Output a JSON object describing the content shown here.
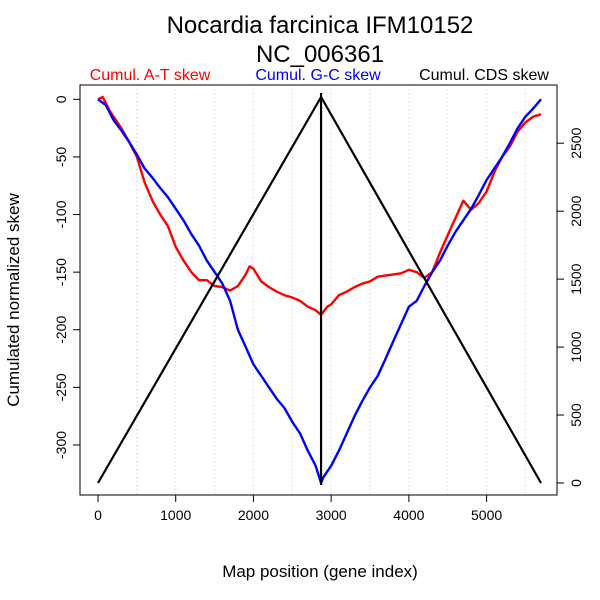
{
  "chart_data": {
    "type": "line",
    "title": "Nocardia farcinica IFM10152",
    "subtitle": "NC_006361",
    "xlabel": "Map position (gene index)",
    "ylabel": "Cumulated normalized skew",
    "xlim": [
      0,
      5700
    ],
    "ylim_left": [
      -333,
      2
    ],
    "ylim_right": [
      0,
      2840
    ],
    "x_ticks": [
      "0",
      "1000",
      "2000",
      "3000",
      "4000",
      "5000"
    ],
    "y_ticks_left": [
      "0",
      "-50",
      "-100",
      "-150",
      "-200",
      "-250",
      "-300"
    ],
    "y_ticks_right": [
      "0",
      "500",
      "1000",
      "1500",
      "2000",
      "2500"
    ],
    "grid_vertical_at": [
      500,
      1000,
      1500,
      2000,
      2500,
      3000,
      3500,
      4000,
      4500,
      5000,
      5500
    ],
    "grid": "vertical dotted",
    "legend_placement": "top",
    "origin_line_x": 2870,
    "series": [
      {
        "name": "Cumul. A-T skew",
        "axis": "left",
        "color": "#ff0000",
        "x": [
          0,
          60,
          150,
          300,
          400,
          500,
          600,
          700,
          800,
          900,
          1000,
          1100,
          1200,
          1300,
          1400,
          1500,
          1600,
          1700,
          1800,
          1900,
          1950,
          2000,
          2100,
          2200,
          2300,
          2400,
          2500,
          2600,
          2700,
          2800,
          2870,
          2950,
          3000,
          3100,
          3200,
          3300,
          3400,
          3500,
          3600,
          3700,
          3800,
          3900,
          4000,
          4100,
          4200,
          4300,
          4400,
          4500,
          4600,
          4700,
          4800,
          4900,
          5000,
          5100,
          5200,
          5300,
          5400,
          5500,
          5600,
          5700
        ],
        "y": [
          0,
          2,
          -10,
          -25,
          -37,
          -50,
          -72,
          -88,
          -100,
          -110,
          -128,
          -140,
          -150,
          -157,
          -157,
          -162,
          -163,
          -166,
          -162,
          -152,
          -145,
          -147,
          -158,
          -163,
          -167,
          -170,
          -172,
          -175,
          -180,
          -183,
          -187,
          -180,
          -178,
          -170,
          -167,
          -163,
          -160,
          -158,
          -154,
          -153,
          -152,
          -151,
          -148,
          -150,
          -155,
          -150,
          -133,
          -118,
          -103,
          -88,
          -96,
          -90,
          -80,
          -63,
          -50,
          -41,
          -28,
          -20,
          -15,
          -13
        ]
      },
      {
        "name": "Cumul. G-C skew",
        "axis": "left",
        "color": "#0000ff",
        "x": [
          0,
          100,
          200,
          300,
          400,
          500,
          600,
          700,
          800,
          900,
          1000,
          1100,
          1200,
          1300,
          1400,
          1500,
          1600,
          1700,
          1800,
          1900,
          2000,
          2100,
          2200,
          2300,
          2400,
          2500,
          2600,
          2700,
          2800,
          2870,
          2900,
          3000,
          3100,
          3200,
          3300,
          3400,
          3500,
          3600,
          3700,
          3800,
          3900,
          4000,
          4100,
          4200,
          4300,
          4400,
          4500,
          4600,
          4700,
          4800,
          4900,
          5000,
          5100,
          5200,
          5300,
          5400,
          5500,
          5600,
          5700
        ],
        "y": [
          0,
          -5,
          -18,
          -27,
          -37,
          -48,
          -60,
          -68,
          -77,
          -85,
          -95,
          -105,
          -117,
          -127,
          -140,
          -150,
          -160,
          -175,
          -200,
          -215,
          -230,
          -240,
          -250,
          -260,
          -268,
          -280,
          -290,
          -305,
          -318,
          -333,
          -328,
          -318,
          -305,
          -290,
          -275,
          -262,
          -250,
          -240,
          -225,
          -210,
          -195,
          -180,
          -175,
          -162,
          -150,
          -140,
          -127,
          -115,
          -105,
          -95,
          -83,
          -70,
          -60,
          -50,
          -38,
          -25,
          -15,
          -8,
          0
        ]
      },
      {
        "name": "Cumul. CDS skew",
        "axis": "right",
        "color": "#000000",
        "x": [
          0,
          2870,
          5700
        ],
        "y": [
          0,
          2840,
          0
        ]
      }
    ]
  }
}
